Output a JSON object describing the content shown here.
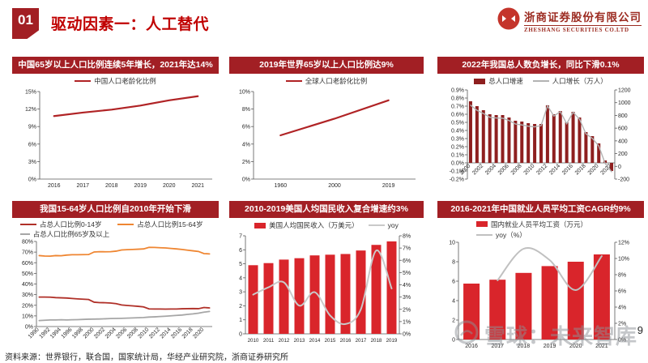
{
  "page": {
    "badge": "01",
    "title": "驱动因素一：人工替代",
    "logo": {
      "name_cn": "浙商证券股份有限公司",
      "name_en": "ZHESHANG SECURITIES CO.LTD"
    },
    "source": "资料来源：世界银行，联合国，国家统计局，华经产业研究院，浙商证券研究所",
    "page_number": "9",
    "watermark": "雪球：未来智库"
  },
  "colors": {
    "header_bar": "#A21F24",
    "title_red": "#C00000",
    "bright_red": "#D9252B",
    "dark_red_bar": "#8E1F1F",
    "line_red": "#B02325",
    "orange": "#EF8632",
    "gray": "#A6A6A6",
    "light_gray": "#C6C6C6"
  },
  "chart_data": [
    {
      "title": "中国65岁以上人口比例连续5年增长，2021年达14%",
      "type": "line",
      "x": [
        "2016",
        "2017",
        "2018",
        "2019",
        "2020",
        "2021"
      ],
      "xaxis": {
        "every": 1,
        "rotate": false
      },
      "yleft": {
        "min": 0,
        "max": 15,
        "ticks": [
          0,
          3,
          6,
          9,
          12,
          15
        ],
        "labels": [
          "0%",
          "3%",
          "6%",
          "9%",
          "12%",
          "15%"
        ]
      },
      "series": [
        {
          "id": "china-aging",
          "name": "中国人口老龄化比例",
          "type": "line",
          "axis": "left",
          "color": "#B02325",
          "width": 2.2,
          "smooth": false,
          "values": [
            10.8,
            11.4,
            11.9,
            12.6,
            13.5,
            14.2
          ]
        }
      ],
      "legend": [
        {
          "swatch": "line",
          "color": "#B02325",
          "label": "中国人口老龄化比例"
        }
      ]
    },
    {
      "title": "2019年世界65岁以上人口比例达9%",
      "type": "line",
      "x": [
        "1960",
        "2000",
        "2019"
      ],
      "xaxis": {
        "every": 1,
        "rotate": false
      },
      "yleft": {
        "min": 0,
        "max": 10,
        "ticks": [
          0,
          2,
          4,
          6,
          8,
          10
        ],
        "labels": [
          "0%",
          "2%",
          "4%",
          "6%",
          "8%",
          "10%"
        ]
      },
      "series": [
        {
          "id": "world-aging",
          "name": "全球人口老龄化比例",
          "type": "line",
          "axis": "left",
          "color": "#B02325",
          "width": 2.2,
          "smooth": false,
          "values": [
            5.0,
            6.9,
            9.0
          ]
        }
      ],
      "legend": [
        {
          "swatch": "line",
          "color": "#B02325",
          "label": "全球人口老龄化比例"
        }
      ]
    },
    {
      "title": "2022年我国总人数负增长，同比下滑0.1%",
      "type": "bar",
      "x": [
        "2000",
        "2001",
        "2002",
        "2003",
        "2004",
        "2005",
        "2006",
        "2007",
        "2008",
        "2009",
        "2010",
        "2011",
        "2012",
        "2013",
        "2014",
        "2015",
        "2016",
        "2017",
        "2018",
        "2019",
        "2020",
        "2021",
        "2022"
      ],
      "xaxis": {
        "every": 2,
        "rotate": true,
        "at_zero": true
      },
      "yleft": {
        "min": -0.2,
        "max": 0.9,
        "ticks": [
          -0.2,
          -0.1,
          0,
          0.1,
          0.2,
          0.3,
          0.4,
          0.5,
          0.6,
          0.7,
          0.8,
          0.9
        ],
        "labels": [
          "-0.2%",
          "-0.1%",
          "0.0%",
          "0.1%",
          "0.2%",
          "0.3%",
          "0.4%",
          "0.5%",
          "0.6%",
          "0.7%",
          "0.8%",
          "0.9%"
        ]
      },
      "yright": {
        "min": -200,
        "max": 1200,
        "ticks": [
          -200,
          0,
          200,
          400,
          600,
          800,
          1000,
          1200
        ],
        "labels": [
          "-200",
          "0",
          "200",
          "400",
          "600",
          "800",
          "1000",
          "1200"
        ]
      },
      "series": [
        {
          "id": "pop-growth-rate",
          "name": "总人口增速",
          "type": "bar",
          "axis": "left",
          "color": "#8E1F1F",
          "values": [
            0.76,
            0.7,
            0.65,
            0.6,
            0.59,
            0.59,
            0.56,
            0.52,
            0.51,
            0.49,
            0.48,
            0.48,
            0.71,
            0.6,
            0.64,
            0.5,
            0.63,
            0.56,
            0.38,
            0.33,
            0.24,
            0.03,
            -0.1
          ]
        },
        {
          "id": "pop-growth-abs",
          "name": "人口增长（万人）",
          "type": "line",
          "axis": "right",
          "color": "#B3B3B3",
          "width": 1.4,
          "smooth": false,
          "values": [
            960,
            880,
            830,
            770,
            760,
            755,
            720,
            665,
            650,
            630,
            620,
            640,
            950,
            790,
            860,
            670,
            850,
            740,
            510,
            440,
            320,
            45,
            -85
          ]
        }
      ],
      "legend": [
        {
          "swatch": "bar",
          "color": "#8E1F1F",
          "label": "总人口增速"
        },
        {
          "swatch": "line",
          "color": "#B3B3B3",
          "label": "人口增长（万人）"
        }
      ]
    },
    {
      "title": "我国15-64岁人口比例自2010年开始下滑",
      "type": "line",
      "x": [
        "1990",
        "1991",
        "1992",
        "1993",
        "1994",
        "1995",
        "1996",
        "1997",
        "1998",
        "1999",
        "2000",
        "2001",
        "2002",
        "2003",
        "2004",
        "2005",
        "2006",
        "2007",
        "2008",
        "2009",
        "2010",
        "2011",
        "2012",
        "2013",
        "2014",
        "2015",
        "2016",
        "2017",
        "2018",
        "2019",
        "2020",
        "2021"
      ],
      "xaxis": {
        "every": 2,
        "rotate": true
      },
      "yleft": {
        "min": 0,
        "max": 80,
        "ticks": [
          0,
          10,
          20,
          30,
          40,
          50,
          60,
          70,
          80
        ],
        "labels": [
          "0%",
          "10%",
          "20%",
          "30%",
          "40%",
          "50%",
          "60%",
          "70%",
          "80%"
        ]
      },
      "series": [
        {
          "id": "age-0-14",
          "name": "占总人口比例0-14岁",
          "type": "line",
          "axis": "left",
          "color": "#B03028",
          "width": 1.8,
          "smooth": false,
          "values": [
            27.7,
            27.7,
            27.6,
            27.2,
            27.0,
            26.8,
            26.4,
            26.0,
            25.7,
            25.4,
            22.9,
            22.5,
            22.4,
            22.1,
            21.5,
            20.3,
            19.8,
            19.4,
            19.0,
            18.5,
            16.6,
            16.5,
            16.5,
            16.4,
            16.5,
            16.5,
            16.7,
            16.8,
            16.9,
            16.8,
            17.9,
            17.5
          ]
        },
        {
          "id": "age-15-64",
          "name": "占总人口比例15-64岁",
          "type": "line",
          "axis": "left",
          "color": "#EF8632",
          "width": 1.8,
          "smooth": false,
          "values": [
            66.7,
            66.3,
            66.2,
            66.7,
            66.6,
            67.2,
            67.5,
            67.5,
            67.6,
            67.7,
            70.1,
            70.4,
            70.3,
            70.4,
            70.9,
            72.0,
            72.3,
            72.5,
            72.7,
            73.0,
            74.5,
            74.4,
            74.1,
            73.9,
            73.4,
            73.0,
            72.5,
            71.8,
            71.2,
            70.6,
            68.6,
            68.3
          ]
        },
        {
          "id": "age-65-plus",
          "name": "占总人口比例65岁及以上",
          "type": "line",
          "axis": "left",
          "color": "#A6A6A6",
          "width": 1.8,
          "smooth": false,
          "values": [
            5.6,
            5.9,
            6.2,
            6.2,
            6.4,
            6.2,
            6.4,
            6.5,
            6.7,
            6.9,
            7.0,
            7.1,
            7.3,
            7.5,
            7.6,
            7.7,
            7.9,
            8.1,
            8.3,
            8.5,
            8.9,
            9.1,
            9.4,
            9.7,
            10.1,
            10.5,
            10.8,
            11.4,
            11.9,
            12.6,
            13.5,
            14.2
          ]
        }
      ],
      "legend": [
        {
          "swatch": "line",
          "color": "#B03028",
          "label": "占总人口比例0-14岁"
        },
        {
          "swatch": "line",
          "color": "#EF8632",
          "label": "占总人口比例15-64岁"
        },
        {
          "swatch": "line",
          "color": "#A6A6A6",
          "label": "占总人口比例65岁及以上"
        }
      ]
    },
    {
      "title": "2010-2019美国人均国民收入复合增速约3%",
      "type": "bar",
      "x": [
        "2010",
        "2011",
        "2012",
        "2013",
        "2014",
        "2015",
        "2016",
        "2017",
        "2018",
        "2019"
      ],
      "xaxis": {
        "every": 1,
        "rotate": false,
        "small": true
      },
      "yleft": {
        "min": 0,
        "max": 7,
        "ticks": [
          0,
          1,
          2,
          3,
          4,
          5,
          6,
          7
        ],
        "labels": [
          "0",
          "1",
          "2",
          "3",
          "4",
          "5",
          "6",
          "7"
        ]
      },
      "yright": {
        "min": 0,
        "max": 8,
        "ticks": [
          0,
          1,
          2,
          3,
          4,
          5,
          6,
          7,
          8
        ],
        "labels": [
          "0%",
          "1%",
          "2%",
          "3%",
          "4%",
          "5%",
          "6%",
          "7%",
          "8%"
        ]
      },
      "series": [
        {
          "id": "us-income",
          "name": "美国人均国民收入（万美元）",
          "type": "bar",
          "axis": "left",
          "color": "#D9252B",
          "values": [
            4.9,
            5.05,
            5.3,
            5.4,
            5.6,
            5.65,
            5.7,
            5.95,
            6.35,
            6.6
          ]
        },
        {
          "id": "us-income-yoy",
          "name": "yoy",
          "type": "line",
          "axis": "right",
          "color": "#C9C9C9",
          "width": 2,
          "smooth": true,
          "values": [
            3.2,
            3.8,
            4.2,
            2.3,
            3.4,
            1.5,
            0.8,
            2.0,
            6.8,
            3.7
          ]
        }
      ],
      "legend": [
        {
          "swatch": "bar",
          "color": "#D9252B",
          "label": "美国人均国民收入（万美元）"
        },
        {
          "swatch": "line",
          "color": "#C9C9C9",
          "label": "yoy"
        }
      ]
    },
    {
      "title": "2016-2021年中国就业人员平均工资CAGR约9%",
      "type": "bar",
      "x": [
        "2016",
        "2017",
        "2018",
        "2019",
        "2020",
        "2021"
      ],
      "xaxis": {
        "every": 1,
        "rotate": false
      },
      "yleft": {
        "min": 0,
        "max": 10,
        "ticks": [
          0,
          2,
          4,
          6,
          8,
          10
        ],
        "labels": [
          "0",
          "2",
          "4",
          "6",
          "8",
          "10"
        ]
      },
      "yright": {
        "min": 0,
        "max": 12,
        "ticks": [
          0,
          2,
          4,
          6,
          8,
          10,
          12
        ],
        "labels": [
          "0%",
          "2%",
          "4%",
          "6%",
          "8%",
          "10%",
          "12%"
        ]
      },
      "series": [
        {
          "id": "cn-wage",
          "name": "国内就业人员平均工资（万元）",
          "type": "bar",
          "axis": "left",
          "color": "#D9252B",
          "values": [
            5.75,
            6.15,
            6.85,
            7.55,
            8.0,
            8.75
          ]
        },
        {
          "id": "cn-wage-yoy",
          "name": "yoy（%）",
          "type": "line",
          "axis": "right",
          "color": "#C0C0C0",
          "width": 2,
          "smooth": true,
          "values": [
            null,
            7.3,
            11.2,
            9.8,
            6.1,
            10.3
          ]
        }
      ],
      "legend": [
        {
          "swatch": "bar",
          "color": "#D9252B",
          "label": "国内就业人员平均工资（万元）"
        },
        {
          "swatch": "line",
          "color": "#C0C0C0",
          "label": "yoy（%）"
        }
      ]
    }
  ]
}
